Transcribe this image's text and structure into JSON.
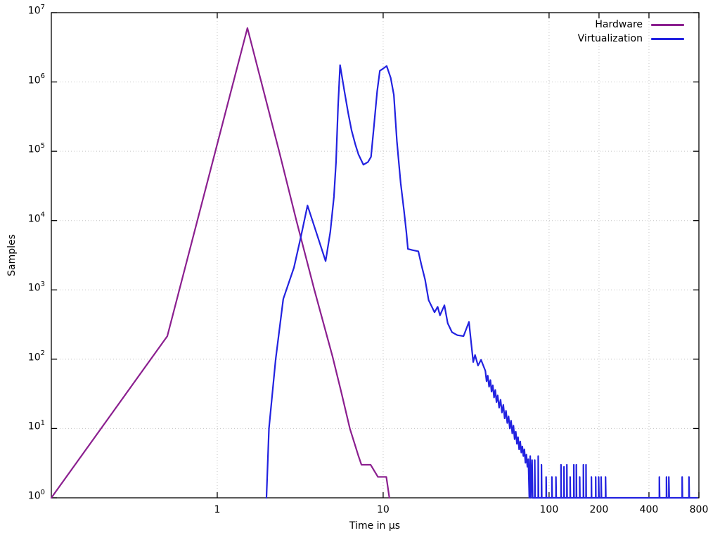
{
  "figure": {
    "background": "#ffffff",
    "border_color": "#000000",
    "grid_color": "#c4c4c4",
    "text_color": "#000000"
  },
  "legend": {
    "entries": [
      "Hardware",
      "Virtualization"
    ]
  },
  "chart_data": {
    "type": "line",
    "title": "",
    "xlabel": "Time in µs",
    "ylabel": "Samples",
    "x_scale": "log",
    "y_scale": "log",
    "xlim": [
      0.1,
      800
    ],
    "ylim": [
      1,
      10000000
    ],
    "x_tick_values": [
      1,
      10,
      100,
      200,
      400,
      800
    ],
    "x_tick_labels": [
      "1",
      "10",
      "100",
      "200",
      "400",
      "800"
    ],
    "y_tick_base": "10",
    "y_tick_exponents": [
      0,
      1,
      2,
      3,
      4,
      5,
      6,
      7
    ],
    "grid": "dotted lines at labeled ticks, solid black border",
    "legend_position": "top-right-inside",
    "series": [
      {
        "name": "Hardware",
        "color": "#8b1f8f",
        "points": [
          [
            0.1,
            1
          ],
          [
            0.5,
            215
          ],
          [
            1.52,
            6000000
          ],
          [
            2.36,
            100000
          ],
          [
            3.0,
            10000
          ],
          [
            3.85,
            1000
          ],
          [
            4.95,
            110
          ],
          [
            5.6,
            33
          ],
          [
            6.3,
            10
          ],
          [
            7.1,
            4
          ],
          [
            7.4,
            3
          ],
          [
            8.4,
            3
          ],
          [
            9.3,
            2
          ],
          [
            10.45,
            2
          ],
          [
            10.9,
            1
          ]
        ]
      },
      {
        "name": "Virtualization",
        "color": "#2222e0",
        "points": [
          [
            1.98,
            1
          ],
          [
            2.05,
            10
          ],
          [
            2.25,
            100
          ],
          [
            2.5,
            740
          ],
          [
            2.9,
            2100
          ],
          [
            3.2,
            6000
          ],
          [
            3.5,
            16500
          ],
          [
            3.95,
            6800
          ],
          [
            4.5,
            2600
          ],
          [
            4.8,
            6800
          ],
          [
            5.05,
            22000
          ],
          [
            5.2,
            70000
          ],
          [
            5.35,
            450000
          ],
          [
            5.5,
            1750000
          ],
          [
            5.85,
            720000
          ],
          [
            6.15,
            360000
          ],
          [
            6.45,
            200000
          ],
          [
            6.8,
            125000
          ],
          [
            7.1,
            90000
          ],
          [
            7.6,
            64000
          ],
          [
            8.1,
            70000
          ],
          [
            8.45,
            83000
          ],
          [
            8.8,
            230000
          ],
          [
            9.2,
            730000
          ],
          [
            9.55,
            1450000
          ],
          [
            10.0,
            1560000
          ],
          [
            10.5,
            1700000
          ],
          [
            11.1,
            1150000
          ],
          [
            11.6,
            650000
          ],
          [
            12.1,
            140000
          ],
          [
            12.75,
            35000
          ],
          [
            13.35,
            14000
          ],
          [
            13.8,
            6800
          ],
          [
            14.1,
            3900
          ],
          [
            15.0,
            3750
          ],
          [
            16.3,
            3600
          ],
          [
            17.0,
            2300
          ],
          [
            17.9,
            1400
          ],
          [
            18.8,
            710
          ],
          [
            20.4,
            475
          ],
          [
            21.3,
            570
          ],
          [
            22.0,
            430
          ],
          [
            23.4,
            600
          ],
          [
            24.5,
            330
          ],
          [
            26.0,
            245
          ],
          [
            28.0,
            222
          ],
          [
            30.5,
            215
          ],
          [
            32.9,
            345
          ],
          [
            34.9,
            91
          ],
          [
            35.8,
            115
          ],
          [
            37.3,
            81
          ],
          [
            38.9,
            98
          ],
          [
            41.3,
            68
          ],
          [
            42.0,
            48
          ],
          [
            42.7,
            58
          ],
          [
            43.5,
            40
          ],
          [
            44.3,
            50
          ],
          [
            45.0,
            34
          ],
          [
            45.8,
            42
          ],
          [
            46.6,
            28
          ],
          [
            47.4,
            36
          ],
          [
            48.2,
            24
          ],
          [
            49.0,
            30
          ],
          [
            50.0,
            20
          ],
          [
            51.0,
            26
          ],
          [
            52.0,
            17
          ],
          [
            53.0,
            22
          ],
          [
            54.0,
            14
          ],
          [
            55.0,
            18
          ],
          [
            56.0,
            12
          ],
          [
            57.0,
            15
          ],
          [
            58.0,
            10
          ],
          [
            59.0,
            13
          ],
          [
            60.0,
            8.5
          ],
          [
            61.0,
            11
          ],
          [
            62.0,
            7
          ],
          [
            63.0,
            9
          ],
          [
            64.0,
            6
          ],
          [
            65.0,
            7.5
          ],
          [
            66.0,
            5
          ],
          [
            67.0,
            6.5
          ],
          [
            68.0,
            4.5
          ],
          [
            69.0,
            5.5
          ],
          [
            70.0,
            4
          ],
          [
            71.0,
            5
          ],
          [
            72.0,
            3.2
          ],
          [
            73.0,
            4.2
          ],
          [
            74.0,
            2.8
          ],
          [
            75.0,
            3.6
          ],
          [
            76.0,
            1
          ],
          [
            77.0,
            4
          ],
          [
            77.6,
            1
          ],
          [
            79.0,
            3.5
          ],
          [
            79.6,
            1
          ],
          [
            82,
            1
          ],
          [
            82,
            3.5
          ],
          [
            82.4,
            1
          ],
          [
            86,
            1
          ],
          [
            86,
            4
          ],
          [
            86.4,
            1
          ],
          [
            90,
            1
          ],
          [
            90,
            3
          ],
          [
            90.4,
            1
          ],
          [
            96,
            1
          ],
          [
            96,
            2
          ],
          [
            96.4,
            1
          ],
          [
            104,
            1
          ],
          [
            104,
            2
          ],
          [
            104.5,
            1
          ],
          [
            110,
            1
          ],
          [
            110,
            2
          ],
          [
            110.5,
            1
          ],
          [
            118,
            1
          ],
          [
            118,
            3
          ],
          [
            118.5,
            1
          ],
          [
            123,
            1
          ],
          [
            123,
            2.8
          ],
          [
            123.5,
            1
          ],
          [
            128,
            1
          ],
          [
            128,
            3
          ],
          [
            128.5,
            1
          ],
          [
            134,
            1
          ],
          [
            134,
            2
          ],
          [
            134.5,
            1
          ],
          [
            141,
            1
          ],
          [
            141,
            3
          ],
          [
            141.5,
            1
          ],
          [
            146,
            1
          ],
          [
            146,
            3
          ],
          [
            146.5,
            1
          ],
          [
            153,
            1
          ],
          [
            153,
            2
          ],
          [
            153.5,
            1
          ],
          [
            161,
            1
          ],
          [
            161,
            3
          ],
          [
            161.5,
            1
          ],
          [
            167,
            1
          ],
          [
            167,
            3
          ],
          [
            167.5,
            1
          ],
          [
            180,
            1
          ],
          [
            180,
            2
          ],
          [
            180.5,
            1
          ],
          [
            191,
            1
          ],
          [
            191,
            2
          ],
          [
            191.5,
            1
          ],
          [
            199,
            1
          ],
          [
            199,
            2
          ],
          [
            200,
            1
          ],
          [
            206,
            1
          ],
          [
            206,
            2
          ],
          [
            207,
            1
          ],
          [
            219,
            1
          ],
          [
            219,
            2
          ],
          [
            220,
            1
          ],
          [
            462,
            1
          ],
          [
            462,
            2
          ],
          [
            464,
            1
          ],
          [
            510,
            1
          ],
          [
            510,
            2
          ],
          [
            512,
            1
          ],
          [
            527,
            1
          ],
          [
            527,
            2
          ],
          [
            530,
            1
          ],
          [
            634,
            1
          ],
          [
            634,
            2
          ],
          [
            637,
            1
          ],
          [
            697,
            1
          ],
          [
            697,
            2
          ],
          [
            700,
            1
          ],
          [
            780,
            1
          ]
        ]
      }
    ]
  }
}
